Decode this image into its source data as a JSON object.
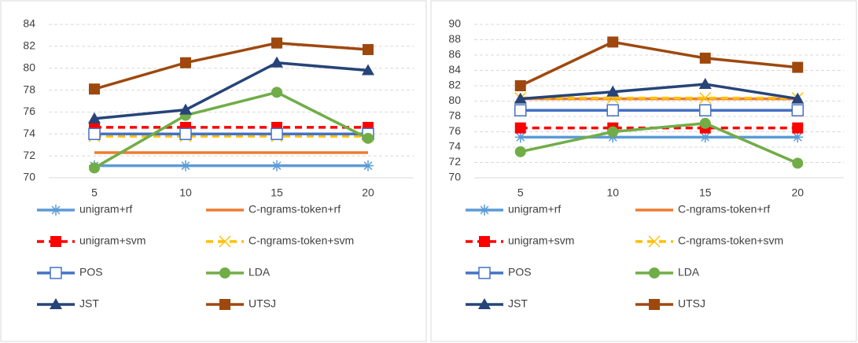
{
  "chart_data": [
    {
      "type": "line",
      "categories": [
        "5",
        "10",
        "15",
        "20"
      ],
      "ylim": [
        70,
        84
      ],
      "yticks": [
        70,
        72,
        74,
        76,
        78,
        80,
        82,
        84
      ],
      "grid": true,
      "series": [
        {
          "name": "unigram+rf",
          "color": "#5b9bd5",
          "dash": false,
          "marker": "asterisk",
          "values": [
            71.1,
            71.1,
            71.1,
            71.1
          ]
        },
        {
          "name": "C-ngrams-token+rf",
          "color": "#ed7d31",
          "dash": false,
          "marker": "none",
          "values": [
            72.3,
            72.3,
            72.3,
            72.3
          ]
        },
        {
          "name": "unigram+svm",
          "color": "#ff0000",
          "dash": true,
          "marker": "square",
          "values": [
            74.6,
            74.6,
            74.6,
            74.6
          ]
        },
        {
          "name": "C-ngrams-token+svm",
          "color": "#ffc000",
          "dash": true,
          "marker": "x",
          "values": [
            73.8,
            73.8,
            73.8,
            73.8
          ]
        },
        {
          "name": "POS",
          "color": "#4472c4",
          "dash": false,
          "marker": "open-square",
          "values": [
            74.0,
            74.0,
            74.0,
            74.0
          ]
        },
        {
          "name": "LDA",
          "color": "#70ad47",
          "dash": false,
          "marker": "circle",
          "values": [
            70.9,
            75.7,
            77.8,
            73.6
          ]
        },
        {
          "name": "JST",
          "color": "#264478",
          "dash": false,
          "marker": "triangle",
          "values": [
            75.4,
            76.2,
            80.5,
            79.8
          ]
        },
        {
          "name": "UTSJ",
          "color": "#9e480e",
          "dash": false,
          "marker": "square",
          "values": [
            78.1,
            80.5,
            82.3,
            81.7
          ]
        }
      ]
    },
    {
      "type": "line",
      "categories": [
        "5",
        "10",
        "15",
        "20"
      ],
      "ylim": [
        70,
        90
      ],
      "yticks": [
        70,
        72,
        74,
        76,
        78,
        80,
        82,
        84,
        86,
        88,
        90
      ],
      "grid": true,
      "series": [
        {
          "name": "unigram+rf",
          "color": "#5b9bd5",
          "dash": false,
          "marker": "asterisk",
          "values": [
            75.3,
            75.3,
            75.3,
            75.3
          ]
        },
        {
          "name": "C-ngrams-token+rf",
          "color": "#ed7d31",
          "dash": false,
          "marker": "none",
          "values": [
            80.3,
            80.3,
            80.3,
            80.3
          ]
        },
        {
          "name": "unigram+svm",
          "color": "#ff0000",
          "dash": true,
          "marker": "square",
          "values": [
            76.5,
            76.5,
            76.5,
            76.5
          ]
        },
        {
          "name": "C-ngrams-token+svm",
          "color": "#ffc000",
          "dash": true,
          "marker": "x",
          "values": [
            80.4,
            80.4,
            80.4,
            80.4
          ]
        },
        {
          "name": "POS",
          "color": "#4472c4",
          "dash": false,
          "marker": "open-square",
          "values": [
            78.8,
            78.8,
            78.8,
            78.8
          ]
        },
        {
          "name": "LDA",
          "color": "#70ad47",
          "dash": false,
          "marker": "circle",
          "values": [
            73.4,
            76.0,
            77.1,
            71.9
          ]
        },
        {
          "name": "JST",
          "color": "#264478",
          "dash": false,
          "marker": "triangle",
          "values": [
            80.3,
            81.2,
            82.2,
            80.3
          ]
        },
        {
          "name": "UTSJ",
          "color": "#9e480e",
          "dash": false,
          "marker": "square",
          "values": [
            82.0,
            87.7,
            85.6,
            84.4
          ]
        }
      ]
    }
  ]
}
